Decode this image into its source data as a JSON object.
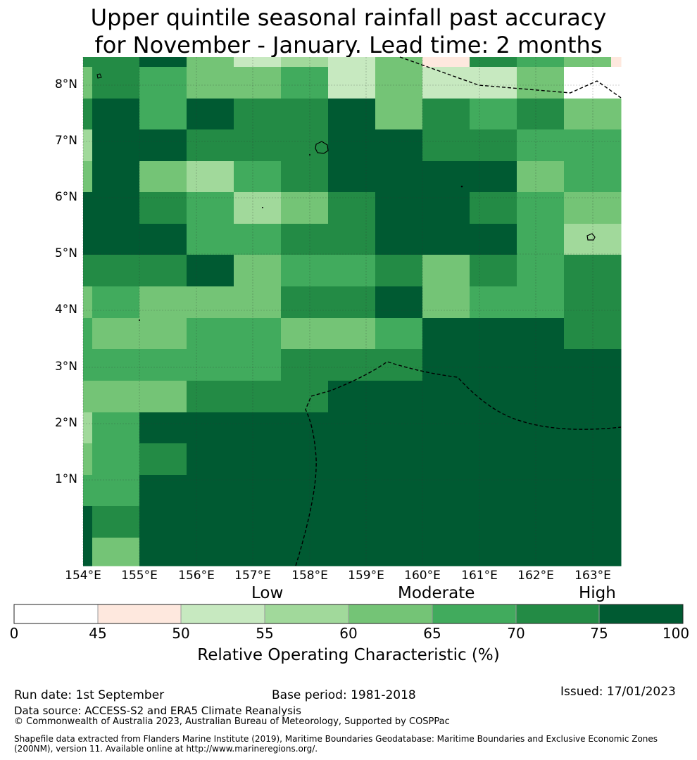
{
  "title": {
    "line1": "Upper quintile seasonal rainfall past accuracy",
    "line2": "for November - January. Lead time: 2 months"
  },
  "map": {
    "lat_labels": [
      "8°N",
      "7°N",
      "6°N",
      "5°N",
      "4°N",
      "3°N",
      "2°N",
      "1°N"
    ],
    "lon_labels": [
      "154°E",
      "155°E",
      "156°E",
      "157°E",
      "158°E",
      "159°E",
      "160°E",
      "161°E",
      "162°E",
      "163°E"
    ]
  },
  "legend": {
    "categories": [
      "Low",
      "Moderate",
      "High"
    ],
    "ticks": [
      "0",
      "45",
      "50",
      "55",
      "60",
      "65",
      "70",
      "75",
      "100"
    ],
    "colors": [
      "#ffffff",
      "#fee8de",
      "#c7e9c0",
      "#a1d99b",
      "#74c476",
      "#41ab5d",
      "#238b45",
      "#005a32"
    ],
    "title": "Relative Operating Characteristic (%)"
  },
  "footer": {
    "run_date": "Run date: 1st September",
    "base_period": "Base period: 1981-2018",
    "issued": "Issued: 17/01/2023",
    "data_source": "Data source: ACCESS-S2 and ERA5 Climate Reanalysis",
    "copyright": "© Commonwealth of Australia 2023, Australian Bureau of Meteorology, Supported by COSPPac",
    "shapefile_line1": "Shapefile data extracted from Flanders Marine Institute (2019), Maritime Boundaries Geodatabase: Maritime Boundaries and Exclusive Economic Zones",
    "shapefile_line2": "(200NM), version 11. Available online at http://www.marineregions.org/."
  }
}
